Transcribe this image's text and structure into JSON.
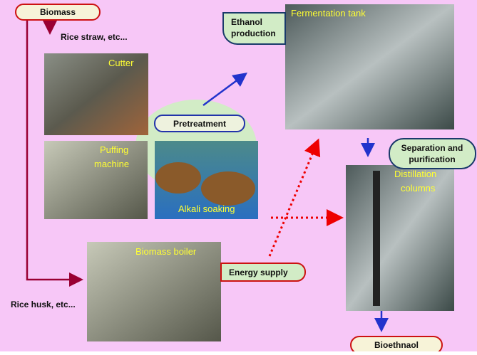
{
  "labels": {
    "biomass": "Biomass",
    "rice_straw": "Rice straw, etc...",
    "pretreatment": "Pretreatment",
    "ethanol_production": [
      "Ethanol",
      "production"
    ],
    "separation": [
      "Separation and",
      "purification"
    ],
    "energy_supply": "Energy supply",
    "rice_husk": "Rice husk, etc...",
    "bioethanol": "Bioethnaol"
  },
  "photos": {
    "cutter": "Cutter",
    "puffing_machine": [
      "Puffing",
      "machine"
    ],
    "alkali_soaking": "Alkali soaking",
    "fermentation_tank": "Fermentation tank",
    "distillation_columns": [
      "Distillation",
      "columns"
    ],
    "biomass_boiler": "Biomass boiler"
  }
}
